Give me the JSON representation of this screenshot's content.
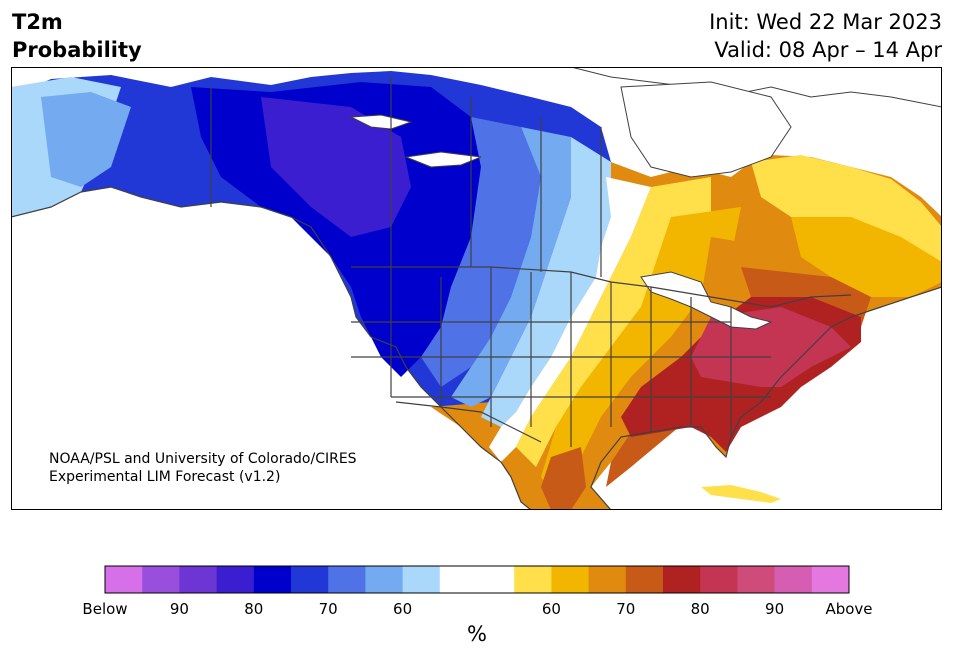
{
  "header": {
    "variable": "T2m",
    "product": "Probability",
    "init": "Init: Wed 22 Mar 2023",
    "valid": "Valid: 08 Apr – 14 Apr"
  },
  "credit": {
    "line1": "NOAA/PSL and University of Colorado/CIRES",
    "line2": "Experimental LIM Forecast (v1.2)"
  },
  "colorbar": {
    "unit": "%",
    "colors": [
      "#d570e8",
      "#9a4fdc",
      "#6c35d4",
      "#3a1ed0",
      "#0000cc",
      "#2238d6",
      "#4f73e6",
      "#74aaef",
      "#aad8fb",
      "#ffffff",
      "#ffffff",
      "#ffe04a",
      "#f2b600",
      "#e08a10",
      "#c85a18",
      "#b02222",
      "#c43554",
      "#cf4c7a",
      "#d55eb3",
      "#e578e0"
    ],
    "tick_labels": [
      "Below",
      "90",
      "80",
      "70",
      "60",
      "60",
      "70",
      "80",
      "90",
      "Above"
    ]
  },
  "map": {
    "colors": {
      "below_weak": "#aad8fb",
      "below_mid": "#74aaef",
      "below_strong": "#4f73e6",
      "below_stronger": "#2238d6",
      "below_max": "#0000cc",
      "below_purple": "#3a1ed0",
      "above_weak": "#ffe04a",
      "above_mid": "#f2b600",
      "above_strong": "#e08a10",
      "above_stronger": "#c85a18",
      "above_max": "#b02222",
      "above_pink": "#c43554",
      "ocean": "#ffffff",
      "border": "#404040"
    }
  }
}
